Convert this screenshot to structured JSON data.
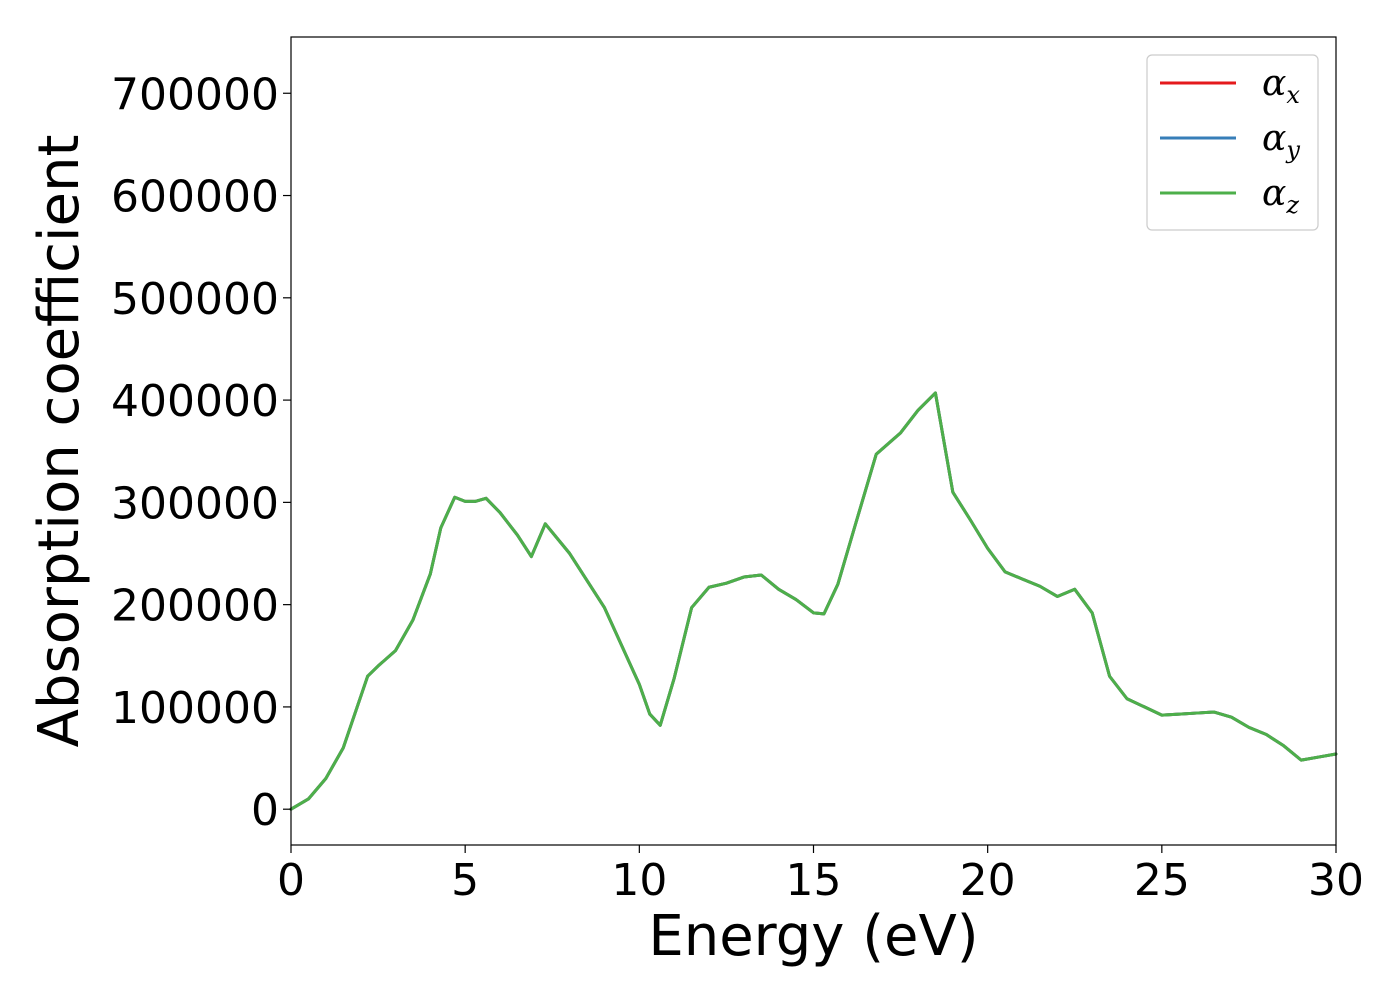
{
  "chart_data": {
    "type": "line",
    "xlabel": "Energy (eV)",
    "ylabel": "Absorption coefficient",
    "xlim": [
      0,
      30
    ],
    "ylim": [
      -35000,
      755000
    ],
    "xticks": [
      0,
      5,
      10,
      15,
      20,
      25,
      30
    ],
    "yticks": [
      0,
      100000,
      200000,
      300000,
      400000,
      500000,
      600000,
      700000
    ],
    "grid": false,
    "legend_position": "top-right",
    "legend_entries": [
      {
        "symbol": "α",
        "sub": "x",
        "color": "#e41a1c"
      },
      {
        "symbol": "α",
        "sub": "y",
        "color": "#377eb8"
      },
      {
        "symbol": "α",
        "sub": "z",
        "color": "#4daf4a"
      }
    ],
    "x": [
      0,
      0.5,
      1,
      1.5,
      2,
      2.2,
      2.5,
      3,
      3.5,
      4,
      4.3,
      4.7,
      5,
      5.3,
      5.6,
      6,
      6.5,
      6.9,
      7.3,
      8,
      9,
      10,
      10.3,
      10.6,
      11,
      11.5,
      12,
      12.5,
      13,
      13.5,
      14,
      14.5,
      15,
      15.3,
      15.7,
      16.2,
      16.8,
      17.5,
      18,
      18.5,
      19,
      19.5,
      20,
      20.5,
      21,
      21.5,
      22,
      22.5,
      23,
      23.5,
      24,
      24.5,
      25,
      25.5,
      26,
      26.5,
      27,
      27.5,
      28,
      28.5,
      29,
      29.5,
      30
    ],
    "series": [
      {
        "name": "α_x",
        "color": "#e41a1c",
        "values": [
          0,
          10000,
          30000,
          60000,
          110000,
          130000,
          140000,
          155000,
          185000,
          230000,
          275000,
          305000,
          301000,
          301000,
          304000,
          290000,
          268000,
          247000,
          279000,
          250000,
          197000,
          122000,
          93000,
          82000,
          128000,
          197000,
          217000,
          221000,
          227000,
          229000,
          215000,
          205000,
          192000,
          191000,
          220000,
          278000,
          347000,
          368000,
          390000,
          407000,
          310000,
          283000,
          255000,
          232000,
          225000,
          218000,
          208000,
          215000,
          192000,
          130000,
          108000,
          100000,
          92000,
          93000,
          94000,
          95000,
          90000,
          80000,
          73000,
          62000,
          48000,
          51000,
          54000
        ]
      },
      {
        "name": "α_y",
        "color": "#377eb8",
        "values": [
          0,
          10000,
          30000,
          60000,
          110000,
          130000,
          140000,
          155000,
          185000,
          230000,
          275000,
          305000,
          301000,
          301000,
          304000,
          290000,
          268000,
          247000,
          279000,
          250000,
          197000,
          122000,
          93000,
          82000,
          128000,
          197000,
          217000,
          221000,
          227000,
          229000,
          215000,
          205000,
          192000,
          191000,
          220000,
          278000,
          347000,
          368000,
          390000,
          407000,
          310000,
          283000,
          255000,
          232000,
          225000,
          218000,
          208000,
          215000,
          192000,
          130000,
          108000,
          100000,
          92000,
          93000,
          94000,
          95000,
          90000,
          80000,
          73000,
          62000,
          48000,
          51000,
          54000
        ]
      },
      {
        "name": "α_z",
        "color": "#4daf4a",
        "values": [
          0,
          10000,
          30000,
          60000,
          110000,
          130000,
          140000,
          155000,
          185000,
          230000,
          275000,
          305000,
          301000,
          301000,
          304000,
          290000,
          268000,
          247000,
          279000,
          250000,
          197000,
          122000,
          93000,
          82000,
          128000,
          197000,
          217000,
          221000,
          227000,
          229000,
          215000,
          205000,
          192000,
          191000,
          220000,
          278000,
          347000,
          368000,
          390000,
          407000,
          310000,
          283000,
          255000,
          232000,
          225000,
          218000,
          208000,
          215000,
          192000,
          130000,
          108000,
          100000,
          92000,
          93000,
          94000,
          95000,
          90000,
          80000,
          73000,
          62000,
          48000,
          51000,
          54000
        ]
      }
    ]
  }
}
